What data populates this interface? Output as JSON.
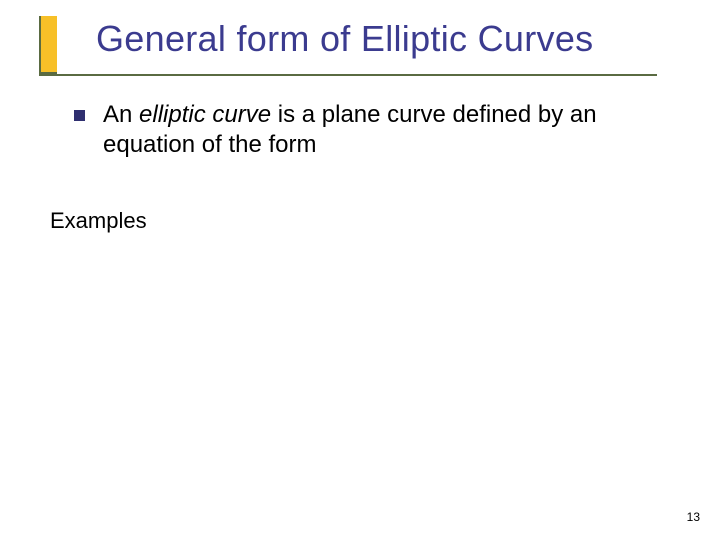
{
  "accent": {
    "bar_color": "#f7c028",
    "border_color": "#5a6b42"
  },
  "title": {
    "text": "General form of Elliptic Curves",
    "color": "#3b3b8f",
    "fontsize": 36
  },
  "bullet": {
    "marker_color": "#2f2f70",
    "text_before": "An ",
    "italic_term": "elliptic curve",
    "text_after": " is a plane curve defined by an equation of the form",
    "fontsize": 24,
    "text_color": "#000000"
  },
  "subheading": {
    "text": "Examples",
    "fontsize": 22,
    "color": "#000000"
  },
  "page_number": {
    "value": "13",
    "fontsize": 12,
    "color": "#000000"
  },
  "background_color": "#ffffff"
}
